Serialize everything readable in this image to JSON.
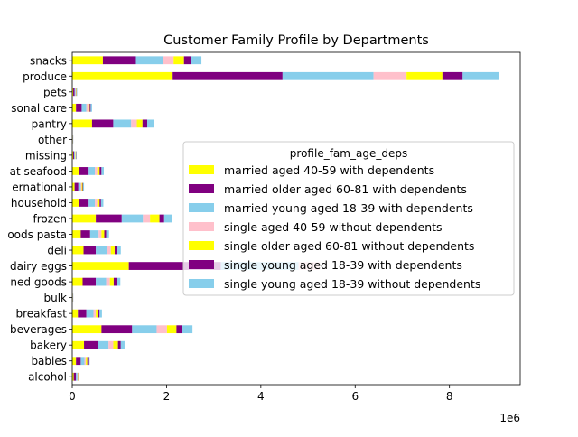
{
  "chart_data": {
    "type": "bar",
    "orientation": "horizontal",
    "stacked": true,
    "title": "Customer Family Profile by Departments",
    "xlabel": "",
    "ylabel": "",
    "x_offset_label": "1e6",
    "xlim": [
      0,
      9.5
    ],
    "xticks": [
      0,
      2,
      4,
      6,
      8
    ],
    "grid": false,
    "legend_position": "center right",
    "legend_title": "profile_fam_age_deps",
    "categories": [
      "alcohol",
      "babies",
      "bakery",
      "beverages",
      "breakfast",
      "bulk",
      "canned goods",
      "dairy eggs",
      "deli",
      "dry goods pasta",
      "frozen",
      "household",
      "international",
      "meat seafood",
      "missing",
      "other",
      "pantry",
      "personal care",
      "pets",
      "produce",
      "snacks"
    ],
    "category_labels": [
      "alcohol",
      "babies",
      "bakery",
      "beverages",
      "breakfast",
      "bulk",
      "ned goods",
      "dairy eggs",
      "deli",
      "oods pasta",
      "frozen",
      "household",
      "ernational",
      "at seafood",
      "missing",
      "other",
      "pantry",
      "sonal care",
      "pets",
      "produce",
      "snacks"
    ],
    "series": [
      {
        "name": "married aged 40-59 with dependents",
        "color": "#ffff00",
        "values": [
          0.03,
          0.08,
          0.25,
          0.62,
          0.12,
          0.005,
          0.22,
          1.2,
          0.24,
          0.18,
          0.5,
          0.15,
          0.05,
          0.15,
          0.02,
          0.005,
          0.42,
          0.08,
          0.02,
          2.13,
          0.65
        ]
      },
      {
        "name": "married older aged 60-81 with dependents",
        "color": "#800080",
        "values": [
          0.05,
          0.1,
          0.3,
          0.65,
          0.18,
          0.005,
          0.28,
          1.95,
          0.26,
          0.2,
          0.55,
          0.18,
          0.08,
          0.18,
          0.02,
          0.005,
          0.45,
          0.12,
          0.03,
          2.33,
          0.7
        ]
      },
      {
        "name": "married young aged 18-39 with dependents",
        "color": "#87ceeb",
        "values": [
          0.03,
          0.08,
          0.22,
          0.52,
          0.15,
          0.005,
          0.22,
          1.65,
          0.24,
          0.18,
          0.45,
          0.15,
          0.05,
          0.15,
          0.02,
          0.005,
          0.38,
          0.1,
          0.02,
          1.93,
          0.58
        ]
      },
      {
        "name": "single aged 40-59 without dependents",
        "color": "#ffc0cb",
        "values": [
          0.01,
          0.03,
          0.1,
          0.22,
          0.05,
          0.002,
          0.08,
          0.45,
          0.08,
          0.06,
          0.15,
          0.05,
          0.02,
          0.05,
          0.01,
          0.002,
          0.12,
          0.04,
          0.01,
          0.7,
          0.22
        ]
      },
      {
        "name": "single older aged 60-81 without dependents",
        "color": "#ffff00",
        "values": [
          0.01,
          0.03,
          0.1,
          0.2,
          0.05,
          0.002,
          0.08,
          0.0,
          0.08,
          0.06,
          0.2,
          0.05,
          0.02,
          0.05,
          0.01,
          0.002,
          0.12,
          0.03,
          0.01,
          0.76,
          0.22
        ]
      },
      {
        "name": "single young aged 18-39 with dependents",
        "color": "#800080",
        "values": [
          0.01,
          0.02,
          0.06,
          0.12,
          0.03,
          0.001,
          0.06,
          0.0,
          0.06,
          0.04,
          0.1,
          0.03,
          0.01,
          0.04,
          0.005,
          0.001,
          0.1,
          0.02,
          0.005,
          0.43,
          0.14
        ]
      },
      {
        "name": "single young aged 18-39 without dependents",
        "color": "#87ceeb",
        "values": [
          0.01,
          0.03,
          0.08,
          0.22,
          0.05,
          0.002,
          0.08,
          0.0,
          0.07,
          0.06,
          0.16,
          0.05,
          0.02,
          0.05,
          0.01,
          0.002,
          0.14,
          0.03,
          0.01,
          0.76,
          0.23
        ]
      }
    ]
  }
}
